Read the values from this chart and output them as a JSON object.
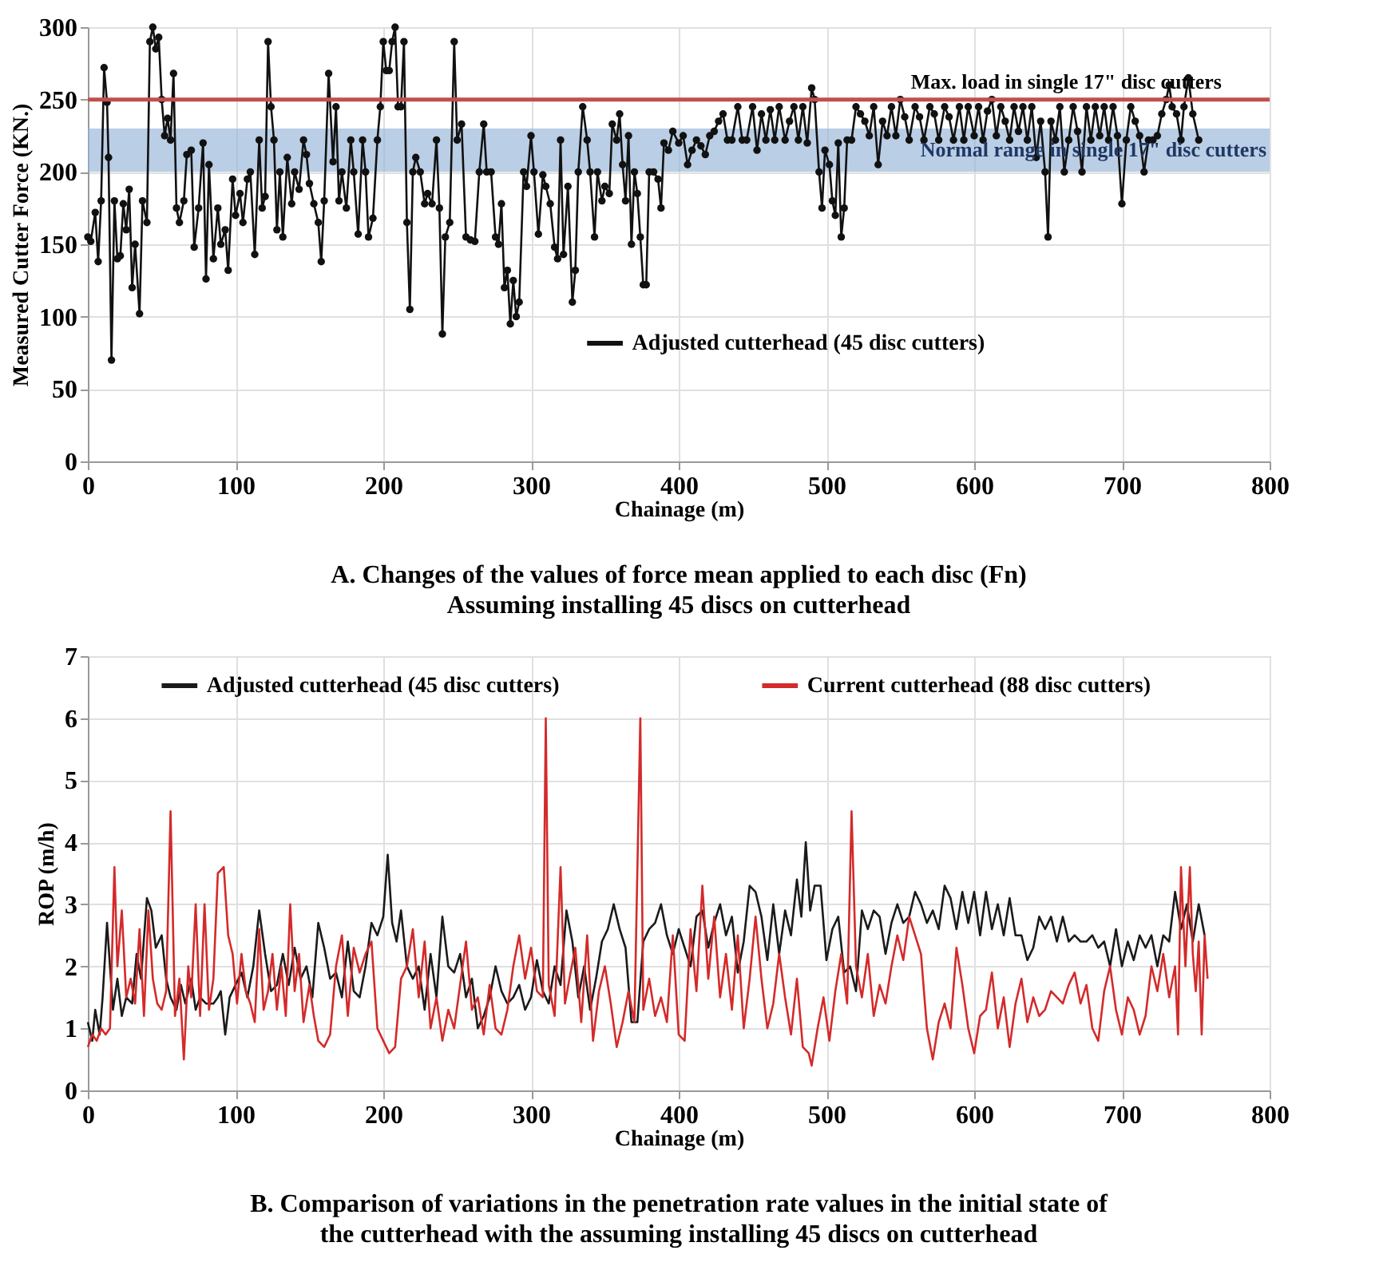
{
  "chart_data": [
    {
      "type": "line",
      "title": "A. Changes of the values of force mean applied to each disc (Fn)",
      "subtitle": "Assuming installing 45 discs on cutterhead",
      "xlabel": "Chainage (m)",
      "ylabel": "Measured Cutter Force (KN.)",
      "xlim": [
        0,
        800
      ],
      "xticks": [
        0,
        100,
        200,
        300,
        400,
        500,
        600,
        700,
        800
      ],
      "ylim": [
        0,
        300
      ],
      "yticks": [
        0,
        50,
        100,
        150,
        200,
        250,
        300
      ],
      "grid": true,
      "legend": "bottom",
      "marker": "circle",
      "line_style": "solid",
      "ref_lines": [
        {
          "axis": "y",
          "value": 250,
          "label": "Max. load in single 17\" disc cutters",
          "color": "#c0504d"
        }
      ],
      "bands": [
        {
          "axis": "y",
          "from": 200,
          "to": 230,
          "label": "Normal range in single 17\" disc cutters",
          "color": "#95b3d7"
        }
      ],
      "series": [
        {
          "name": "Adjusted cutterhead (45 disc cutters)",
          "color": "#111111",
          "x": [
            0,
            2,
            5,
            7,
            9,
            11,
            13,
            14,
            16,
            18,
            20,
            22,
            24,
            26,
            28,
            30,
            32,
            35,
            37,
            40,
            42,
            44,
            46,
            48,
            50,
            52,
            54,
            56,
            58,
            60,
            62,
            65,
            67,
            70,
            72,
            75,
            78,
            80,
            82,
            85,
            88,
            90,
            93,
            95,
            98,
            100,
            103,
            105,
            108,
            110,
            113,
            116,
            118,
            120,
            122,
            124,
            126,
            128,
            130,
            132,
            135,
            138,
            140,
            143,
            146,
            148,
            150,
            153,
            156,
            158,
            160,
            163,
            166,
            168,
            170,
            172,
            175,
            178,
            180,
            183,
            186,
            188,
            190,
            193,
            196,
            198,
            200,
            202,
            204,
            206,
            208,
            210,
            212,
            214,
            216,
            218,
            220,
            222,
            225,
            228,
            230,
            233,
            236,
            238,
            240,
            242,
            245,
            248,
            250,
            253,
            256,
            259,
            262,
            265,
            268,
            270,
            273,
            276,
            278,
            280,
            282,
            284,
            286,
            288,
            290,
            292,
            295,
            297,
            300,
            302,
            305,
            308,
            310,
            313,
            316,
            318,
            320,
            322,
            325,
            328,
            330,
            332,
            335,
            338,
            340,
            343,
            345,
            348,
            350,
            353,
            355,
            358,
            360,
            362,
            364,
            366,
            368,
            370,
            372,
            374,
            376,
            378,
            380,
            383,
            386,
            388,
            390,
            393,
            396,
            400,
            403,
            406,
            409,
            412,
            415,
            418,
            421,
            424,
            427,
            430,
            433,
            436,
            440,
            443,
            446,
            450,
            453,
            456,
            459,
            462,
            465,
            468,
            472,
            475,
            478,
            481,
            484,
            487,
            490,
            492,
            495,
            497,
            499,
            502,
            504,
            506,
            508,
            510,
            512,
            514,
            517,
            520,
            523,
            526,
            529,
            532,
            535,
            538,
            541,
            544,
            547,
            550,
            553,
            556,
            560,
            563,
            566,
            570,
            573,
            576,
            580,
            583,
            586,
            590,
            593,
            596,
            600,
            603,
            606,
            609,
            612,
            615,
            618,
            621,
            624,
            627,
            630,
            633,
            636,
            639,
            642,
            645,
            648,
            650,
            652,
            655,
            658,
            661,
            664,
            667,
            670,
            673,
            676,
            679,
            682,
            685,
            688,
            691,
            694,
            697,
            700,
            703,
            706,
            709,
            712,
            715,
            718,
            721,
            724,
            727,
            730,
            732,
            734,
            737,
            740,
            742,
            745,
            748,
            752
          ],
          "values": [
            155,
            152,
            172,
            138,
            180,
            272,
            248,
            210,
            70,
            180,
            140,
            142,
            178,
            160,
            188,
            120,
            150,
            102,
            180,
            165,
            290,
            300,
            285,
            293,
            250,
            225,
            237,
            222,
            268,
            175,
            165,
            180,
            212,
            215,
            148,
            175,
            220,
            126,
            205,
            140,
            175,
            150,
            160,
            132,
            195,
            170,
            185,
            165,
            195,
            200,
            143,
            222,
            175,
            183,
            290,
            245,
            222,
            160,
            200,
            155,
            210,
            178,
            200,
            188,
            222,
            212,
            192,
            178,
            165,
            138,
            180,
            268,
            207,
            245,
            180,
            200,
            175,
            222,
            200,
            157,
            222,
            200,
            155,
            168,
            222,
            245,
            290,
            270,
            270,
            290,
            300,
            245,
            245,
            290,
            165,
            105,
            200,
            210,
            200,
            178,
            185,
            178,
            222,
            175,
            88,
            155,
            165,
            290,
            222,
            233,
            155,
            153,
            152,
            200,
            233,
            200,
            200,
            155,
            150,
            178,
            120,
            132,
            95,
            125,
            100,
            110,
            200,
            190,
            225,
            200,
            157,
            198,
            190,
            178,
            148,
            140,
            222,
            143,
            190,
            110,
            132,
            200,
            245,
            222,
            200,
            155,
            200,
            180,
            190,
            185,
            233,
            222,
            240,
            205,
            180,
            225,
            150,
            200,
            185,
            155,
            122,
            122,
            200,
            200,
            195,
            175,
            220,
            215,
            228,
            220,
            225,
            205,
            215,
            222,
            218,
            212,
            225,
            228,
            235,
            240,
            222,
            222,
            245,
            222,
            222,
            245,
            215,
            240,
            222,
            243,
            222,
            245,
            222,
            235,
            245,
            222,
            245,
            220,
            258,
            250,
            200,
            175,
            215,
            205,
            180,
            170,
            220,
            155,
            175,
            222,
            222,
            245,
            240,
            235,
            225,
            245,
            205,
            235,
            225,
            245,
            225,
            250,
            238,
            222,
            245,
            238,
            222,
            245,
            240,
            222,
            245,
            238,
            222,
            245,
            222,
            245,
            225,
            245,
            222,
            242,
            250,
            225,
            245,
            235,
            222,
            245,
            228,
            245,
            222,
            245,
            210,
            235,
            200,
            155,
            235,
            222,
            245,
            200,
            222,
            245,
            228,
            200,
            245,
            222,
            245,
            225,
            245,
            222,
            245,
            225,
            178,
            222,
            245,
            235,
            225,
            200,
            222,
            222,
            225,
            240,
            250,
            260,
            245,
            240,
            222,
            245,
            265,
            240,
            222
          ]
        }
      ]
    },
    {
      "type": "line",
      "title": "B. Comparison of variations in the penetration rate values in the initial state of",
      "subtitle": "the cutterhead with the assuming installing 45 discs on cutterhead",
      "xlabel": "Chainage (m)",
      "ylabel": "ROP (m/h)",
      "xlim": [
        0,
        800
      ],
      "xticks": [
        0,
        100,
        200,
        300,
        400,
        500,
        600,
        700,
        800
      ],
      "ylim": [
        0,
        7
      ],
      "yticks": [
        0,
        1,
        2,
        3,
        4,
        5,
        6,
        7
      ],
      "grid": true,
      "legend": "top",
      "marker": "none",
      "line_style": "solid",
      "series": [
        {
          "name": "Adjusted cutterhead (45 disc cutters)",
          "color": "#1a1a1a",
          "x": [
            0,
            3,
            5,
            8,
            10,
            13,
            15,
            17,
            20,
            23,
            26,
            30,
            33,
            36,
            40,
            43,
            46,
            50,
            53,
            56,
            60,
            63,
            66,
            70,
            73,
            76,
            80,
            85,
            88,
            90,
            93,
            96,
            100,
            104,
            108,
            112,
            116,
            120,
            124,
            128,
            132,
            136,
            140,
            144,
            148,
            152,
            156,
            160,
            164,
            168,
            172,
            176,
            180,
            184,
            188,
            192,
            196,
            200,
            203,
            206,
            209,
            212,
            216,
            220,
            224,
            228,
            232,
            236,
            240,
            244,
            248,
            252,
            256,
            260,
            264,
            268,
            272,
            276,
            280,
            284,
            288,
            292,
            296,
            300,
            304,
            308,
            312,
            316,
            320,
            324,
            328,
            332,
            336,
            340,
            344,
            348,
            352,
            356,
            360,
            364,
            368,
            372,
            376,
            380,
            384,
            388,
            392,
            396,
            400,
            404,
            408,
            412,
            416,
            420,
            424,
            428,
            432,
            436,
            440,
            444,
            448,
            452,
            456,
            460,
            464,
            468,
            472,
            476,
            480,
            483,
            486,
            489,
            492,
            496,
            500,
            504,
            508,
            512,
            516,
            520,
            524,
            528,
            532,
            536,
            540,
            544,
            548,
            552,
            556,
            560,
            564,
            568,
            572,
            576,
            580,
            584,
            588,
            592,
            596,
            600,
            604,
            608,
            612,
            616,
            620,
            624,
            628,
            632,
            636,
            640,
            644,
            648,
            652,
            656,
            660,
            664,
            668,
            672,
            676,
            680,
            684,
            688,
            692,
            696,
            700,
            704,
            708,
            712,
            716,
            720,
            724,
            728,
            732,
            736,
            740,
            744,
            748,
            752,
            756
          ],
          "values": [
            1.1,
            0.8,
            1.3,
            0.9,
            1.5,
            2.7,
            2.0,
            1.3,
            1.8,
            1.2,
            1.5,
            1.4,
            2.2,
            1.8,
            3.1,
            2.9,
            2.3,
            2.5,
            1.8,
            1.5,
            1.3,
            1.7,
            1.4,
            1.8,
            1.3,
            1.5,
            1.4,
            1.4,
            1.5,
            1.6,
            0.9,
            1.5,
            1.7,
            1.9,
            1.5,
            2.0,
            2.9,
            2.2,
            1.6,
            1.7,
            2.2,
            1.7,
            2.3,
            1.8,
            2.0,
            1.5,
            2.7,
            2.3,
            1.8,
            1.9,
            1.5,
            2.4,
            1.6,
            1.5,
            2.0,
            2.7,
            2.5,
            2.8,
            3.8,
            2.7,
            2.4,
            2.9,
            2.0,
            1.8,
            2.0,
            1.3,
            2.2,
            1.5,
            2.8,
            2.0,
            1.9,
            2.2,
            1.5,
            1.8,
            1.0,
            1.2,
            1.5,
            2.0,
            1.6,
            1.4,
            1.5,
            1.7,
            1.3,
            1.5,
            2.1,
            1.6,
            1.4,
            2.0,
            1.7,
            2.9,
            2.4,
            1.5,
            2.0,
            1.3,
            1.8,
            2.4,
            2.6,
            3.0,
            2.6,
            2.3,
            1.1,
            1.1,
            2.4,
            2.6,
            2.7,
            3.0,
            2.5,
            2.2,
            2.6,
            2.3,
            2.0,
            2.8,
            2.9,
            2.3,
            2.7,
            3.0,
            2.5,
            2.8,
            1.9,
            2.4,
            3.3,
            3.2,
            2.8,
            2.1,
            3.0,
            2.2,
            2.9,
            2.5,
            3.4,
            2.8,
            4.0,
            2.9,
            3.3,
            3.3,
            2.1,
            2.6,
            2.8,
            1.9,
            2.0,
            1.6,
            2.9,
            2.6,
            2.9,
            2.8,
            2.2,
            2.7,
            3.0,
            2.7,
            2.8,
            3.2,
            3.0,
            2.7,
            2.9,
            2.6,
            3.3,
            3.1,
            2.6,
            3.2,
            2.7,
            3.2,
            2.5,
            3.2,
            2.6,
            3.0,
            2.5,
            3.1,
            2.5,
            2.5,
            2.1,
            2.3,
            2.8,
            2.6,
            2.8,
            2.4,
            2.8,
            2.4,
            2.5,
            2.4,
            2.4,
            2.5,
            2.3,
            2.4,
            2.0,
            2.6,
            2.0,
            2.4,
            2.1,
            2.5,
            2.3,
            2.5,
            2.0,
            2.5,
            2.4,
            3.2,
            2.6,
            3.0,
            2.4,
            3.0,
            2.5
          ]
        },
        {
          "name": "Current cutterhead (88 disc cutters)",
          "color": "#d42a2a",
          "x": [
            0,
            3,
            6,
            9,
            12,
            15,
            18,
            20,
            23,
            26,
            29,
            32,
            35,
            38,
            41,
            44,
            47,
            50,
            53,
            56,
            59,
            62,
            65,
            68,
            70,
            73,
            76,
            79,
            82,
            85,
            88,
            92,
            95,
            98,
            101,
            104,
            107,
            110,
            113,
            116,
            119,
            122,
            125,
            128,
            131,
            134,
            137,
            140,
            143,
            146,
            150,
            153,
            156,
            160,
            164,
            168,
            172,
            176,
            180,
            184,
            188,
            192,
            196,
            200,
            204,
            208,
            212,
            216,
            220,
            224,
            228,
            232,
            236,
            240,
            244,
            248,
            252,
            256,
            260,
            264,
            268,
            272,
            276,
            280,
            284,
            288,
            292,
            296,
            300,
            304,
            308,
            310,
            312,
            316,
            320,
            323,
            326,
            330,
            334,
            338,
            342,
            346,
            350,
            354,
            358,
            362,
            366,
            370,
            374,
            376,
            380,
            384,
            388,
            392,
            396,
            400,
            404,
            408,
            412,
            416,
            420,
            424,
            428,
            432,
            436,
            440,
            444,
            448,
            452,
            456,
            460,
            464,
            468,
            472,
            476,
            480,
            484,
            488,
            490,
            494,
            498,
            502,
            506,
            510,
            514,
            517,
            520,
            524,
            528,
            532,
            536,
            540,
            544,
            548,
            552,
            556,
            560,
            564,
            568,
            572,
            576,
            580,
            584,
            588,
            592,
            596,
            600,
            604,
            608,
            612,
            616,
            620,
            624,
            628,
            632,
            636,
            640,
            644,
            648,
            652,
            656,
            660,
            664,
            668,
            672,
            676,
            680,
            684,
            688,
            692,
            696,
            700,
            704,
            708,
            712,
            716,
            720,
            724,
            728,
            732,
            736,
            738,
            740,
            743,
            746,
            748,
            750,
            752,
            754,
            756,
            758
          ],
          "values": [
            0.7,
            0.9,
            0.8,
            1.0,
            0.9,
            1.0,
            3.6,
            2.0,
            2.9,
            1.5,
            1.8,
            1.4,
            2.6,
            1.2,
            2.9,
            1.8,
            1.4,
            1.3,
            1.6,
            4.5,
            1.2,
            1.8,
            0.5,
            2.0,
            1.5,
            3.0,
            1.2,
            3.0,
            1.3,
            1.8,
            3.5,
            3.6,
            2.5,
            2.2,
            1.4,
            2.2,
            1.6,
            1.4,
            1.1,
            2.6,
            1.3,
            1.6,
            2.2,
            1.3,
            2.0,
            1.2,
            3.0,
            1.6,
            2.2,
            1.1,
            1.7,
            1.2,
            0.8,
            0.7,
            0.9,
            2.0,
            2.5,
            1.2,
            2.3,
            1.9,
            2.2,
            2.4,
            1.0,
            0.8,
            0.6,
            0.7,
            1.8,
            2.0,
            2.6,
            1.5,
            2.4,
            1.0,
            1.5,
            0.8,
            1.3,
            1.0,
            1.7,
            2.4,
            1.3,
            1.5,
            0.9,
            1.7,
            1.0,
            0.9,
            1.3,
            2.0,
            2.5,
            1.8,
            2.3,
            1.6,
            1.5,
            6.0,
            1.7,
            1.2,
            3.6,
            1.4,
            1.8,
            2.3,
            1.1,
            2.5,
            0.8,
            1.6,
            2.0,
            1.4,
            0.7,
            1.1,
            1.6,
            1.1,
            6.0,
            1.3,
            1.8,
            1.2,
            1.5,
            1.1,
            2.5,
            0.9,
            0.8,
            2.6,
            1.6,
            3.3,
            1.8,
            2.8,
            1.5,
            2.2,
            1.3,
            2.5,
            1.0,
            1.8,
            2.8,
            1.8,
            1.0,
            1.4,
            2.2,
            1.5,
            0.9,
            1.8,
            0.7,
            0.6,
            0.4,
            1.0,
            1.5,
            0.8,
            1.6,
            2.2,
            1.4,
            4.5,
            2.0,
            1.5,
            2.2,
            1.2,
            1.7,
            1.4,
            2.0,
            2.5,
            2.1,
            2.8,
            2.5,
            2.2,
            1.0,
            0.5,
            1.1,
            1.4,
            1.0,
            2.3,
            1.7,
            1.0,
            0.6,
            1.2,
            1.3,
            1.9,
            1.0,
            1.5,
            0.7,
            1.4,
            1.8,
            1.1,
            1.5,
            1.2,
            1.3,
            1.6,
            1.5,
            1.4,
            1.7,
            1.9,
            1.4,
            1.7,
            1.0,
            0.8,
            1.6,
            2.0,
            1.3,
            0.9,
            1.5,
            1.3,
            0.9,
            1.2,
            2.0,
            1.6,
            2.2,
            1.5,
            2.0,
            0.9,
            3.6,
            2.0,
            3.6,
            2.2,
            1.6,
            2.4,
            0.9,
            2.5,
            1.8
          ]
        }
      ]
    }
  ]
}
